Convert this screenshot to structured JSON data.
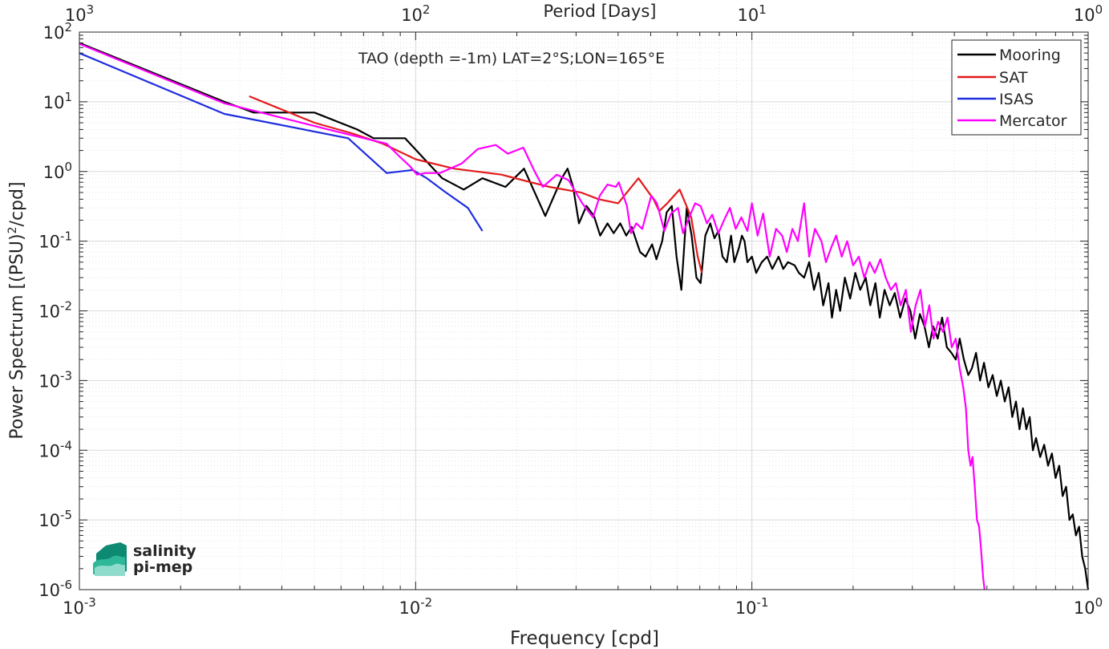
{
  "chart_data": {
    "type": "line",
    "title": "TAO (depth =-1m) LAT=2°S;LON=165°E",
    "xlabel": "Frequency [cpd]",
    "ylabel": "Power Spectrum [(PSU)²/cpd]",
    "ylabel_parts": {
      "main": "Power Spectrum [(PSU)",
      "sup": "2",
      "rest": "/cpd]"
    },
    "top_xlabel": "Period [Days]",
    "xscale": "log",
    "yscale": "log",
    "xlim": [
      0.001,
      1
    ],
    "ylim": [
      1e-06,
      100
    ],
    "x_ticks": [
      0.001,
      0.01,
      0.1,
      1
    ],
    "x_tick_labels": [
      {
        "base": "10",
        "exp": "-3"
      },
      {
        "base": "10",
        "exp": "-2"
      },
      {
        "base": "10",
        "exp": "-1"
      },
      {
        "base": "10",
        "exp": "0"
      }
    ],
    "y_ticks": [
      1e-06,
      1e-05,
      0.0001,
      0.001,
      0.01,
      0.1,
      1,
      10,
      100
    ],
    "y_tick_labels": [
      {
        "base": "10",
        "exp": "-6"
      },
      {
        "base": "10",
        "exp": "-5"
      },
      {
        "base": "10",
        "exp": "-4"
      },
      {
        "base": "10",
        "exp": "-3"
      },
      {
        "base": "10",
        "exp": "-2"
      },
      {
        "base": "10",
        "exp": "-1"
      },
      {
        "base": "10",
        "exp": "0"
      },
      {
        "base": "10",
        "exp": "1"
      },
      {
        "base": "10",
        "exp": "2"
      }
    ],
    "top_x_tick_labels": [
      {
        "base": "10",
        "exp": "3"
      },
      {
        "base": "10",
        "exp": "2"
      },
      {
        "base": "10",
        "exp": "1"
      },
      {
        "base": "10",
        "exp": "0"
      }
    ],
    "grid": true,
    "minor_grid": true,
    "legend_position": "top-right",
    "series": [
      {
        "name": "Mooring",
        "color": "#000000",
        "points": [
          [
            0.001,
            70
          ],
          [
            0.0027,
            10
          ],
          [
            0.0033,
            7
          ],
          [
            0.005,
            7
          ],
          [
            0.0067,
            4
          ],
          [
            0.0075,
            3
          ],
          [
            0.0093,
            3
          ],
          [
            0.012,
            0.8
          ],
          [
            0.0139,
            0.55
          ],
          [
            0.0158,
            0.8
          ],
          [
            0.0185,
            0.6
          ],
          [
            0.021,
            1.1
          ],
          [
            0.0243,
            0.23
          ],
          [
            0.0272,
            0.8
          ],
          [
            0.0283,
            1.1
          ],
          [
            0.0294,
            0.6
          ],
          [
            0.0306,
            0.18
          ],
          [
            0.0322,
            0.32
          ],
          [
            0.0339,
            0.23
          ],
          [
            0.0354,
            0.12
          ],
          [
            0.0372,
            0.18
          ],
          [
            0.0388,
            0.13
          ],
          [
            0.0406,
            0.18
          ],
          [
            0.0423,
            0.12
          ],
          [
            0.0439,
            0.16
          ],
          [
            0.0465,
            0.07
          ],
          [
            0.0483,
            0.06
          ],
          [
            0.0505,
            0.09
          ],
          [
            0.052,
            0.055
          ],
          [
            0.0541,
            0.1
          ],
          [
            0.0558,
            0.26
          ],
          [
            0.0578,
            0.32
          ],
          [
            0.0597,
            0.06
          ],
          [
            0.0617,
            0.02
          ],
          [
            0.064,
            0.3
          ],
          [
            0.0662,
            0.12
          ],
          [
            0.0684,
            0.03
          ],
          [
            0.0704,
            0.025
          ],
          [
            0.0727,
            0.12
          ],
          [
            0.0752,
            0.18
          ],
          [
            0.0774,
            0.11
          ],
          [
            0.0795,
            0.14
          ],
          [
            0.0818,
            0.06
          ],
          [
            0.0842,
            0.05
          ],
          [
            0.0867,
            0.12
          ],
          [
            0.0887,
            0.05
          ],
          [
            0.0915,
            0.08
          ],
          [
            0.0934,
            0.12
          ],
          [
            0.0951,
            0.1
          ],
          [
            0.097,
            0.05
          ],
          [
            0.1,
            0.06
          ],
          [
            0.103,
            0.035
          ],
          [
            0.107,
            0.05
          ],
          [
            0.111,
            0.06
          ],
          [
            0.115,
            0.04
          ],
          [
            0.12,
            0.06
          ],
          [
            0.124,
            0.04
          ],
          [
            0.128,
            0.05
          ],
          [
            0.134,
            0.045
          ],
          [
            0.138,
            0.035
          ],
          [
            0.143,
            0.03
          ],
          [
            0.148,
            0.05
          ],
          [
            0.153,
            0.02
          ],
          [
            0.158,
            0.035
          ],
          [
            0.163,
            0.012
          ],
          [
            0.169,
            0.025
          ],
          [
            0.173,
            0.008
          ],
          [
            0.178,
            0.02
          ],
          [
            0.183,
            0.01
          ],
          [
            0.189,
            0.03
          ],
          [
            0.196,
            0.015
          ],
          [
            0.203,
            0.035
          ],
          [
            0.21,
            0.02
          ],
          [
            0.218,
            0.03
          ],
          [
            0.225,
            0.012
          ],
          [
            0.233,
            0.025
          ],
          [
            0.24,
            0.008
          ],
          [
            0.248,
            0.02
          ],
          [
            0.257,
            0.012
          ],
          [
            0.266,
            0.018
          ],
          [
            0.276,
            0.008
          ],
          [
            0.286,
            0.015
          ],
          [
            0.296,
            0.01
          ],
          [
            0.306,
            0.004
          ],
          [
            0.316,
            0.009
          ],
          [
            0.326,
            0.006
          ],
          [
            0.336,
            0.003
          ],
          [
            0.346,
            0.006
          ],
          [
            0.357,
            0.004
          ],
          [
            0.368,
            0.008
          ],
          [
            0.38,
            0.003
          ],
          [
            0.392,
            0.0025
          ],
          [
            0.404,
            0.002
          ],
          [
            0.415,
            0.004
          ],
          [
            0.427,
            0.002
          ],
          [
            0.44,
            0.0012
          ],
          [
            0.451,
            0.0015
          ],
          [
            0.464,
            0.0025
          ],
          [
            0.477,
            0.001
          ],
          [
            0.49,
            0.0018
          ],
          [
            0.505,
            0.0008
          ],
          [
            0.52,
            0.0012
          ],
          [
            0.535,
            0.0006
          ],
          [
            0.55,
            0.001
          ],
          [
            0.565,
            0.0005
          ],
          [
            0.58,
            0.0008
          ],
          [
            0.595,
            0.0003
          ],
          [
            0.61,
            0.0005
          ],
          [
            0.625,
            0.0002
          ],
          [
            0.64,
            0.0004
          ],
          [
            0.655,
            0.0002
          ],
          [
            0.67,
            0.0003
          ],
          [
            0.685,
            0.0001
          ],
          [
            0.7,
            0.00015
          ],
          [
            0.72,
            8e-05
          ],
          [
            0.74,
            0.00012
          ],
          [
            0.76,
            6e-05
          ],
          [
            0.78,
            9e-05
          ],
          [
            0.8,
            4e-05
          ],
          [
            0.82,
            6e-05
          ],
          [
            0.84,
            2.2e-05
          ],
          [
            0.86,
            3e-05
          ],
          [
            0.88,
            1e-05
          ],
          [
            0.9,
            1.2e-05
          ],
          [
            0.92,
            6e-06
          ],
          [
            0.94,
            8e-06
          ],
          [
            0.96,
            3e-06
          ],
          [
            0.98,
            2e-06
          ],
          [
            1.0,
            1e-06
          ]
        ]
      },
      {
        "name": "SAT",
        "color": "#e31a1c",
        "points": [
          [
            0.0032,
            12
          ],
          [
            0.005,
            5
          ],
          [
            0.0065,
            3.5
          ],
          [
            0.008,
            2.5
          ],
          [
            0.01,
            1.5
          ],
          [
            0.013,
            1.1
          ],
          [
            0.018,
            0.9
          ],
          [
            0.022,
            0.7
          ],
          [
            0.025,
            0.6
          ],
          [
            0.031,
            0.5
          ],
          [
            0.035,
            0.4
          ],
          [
            0.04,
            0.35
          ],
          [
            0.046,
            0.8
          ],
          [
            0.051,
            0.4
          ],
          [
            0.053,
            0.27
          ],
          [
            0.056,
            0.35
          ],
          [
            0.061,
            0.55
          ],
          [
            0.066,
            0.22
          ],
          [
            0.069,
            0.06
          ],
          [
            0.071,
            0.035
          ]
        ]
      },
      {
        "name": "ISAS",
        "color": "#1f2de0",
        "points": [
          [
            0.001,
            50
          ],
          [
            0.0027,
            6.7
          ],
          [
            0.0063,
            3
          ],
          [
            0.0082,
            0.95
          ],
          [
            0.0098,
            1.05
          ],
          [
            0.0108,
            0.8
          ],
          [
            0.0123,
            0.5
          ],
          [
            0.0143,
            0.3
          ],
          [
            0.0158,
            0.14
          ]
        ]
      },
      {
        "name": "Mercator",
        "color": "#ff00ff",
        "points": [
          [
            0.001,
            68
          ],
          [
            0.0027,
            9.5
          ],
          [
            0.0055,
            4
          ],
          [
            0.0082,
            2.5
          ],
          [
            0.009,
            1.6
          ],
          [
            0.0096,
            1.2
          ],
          [
            0.0101,
            0.9
          ],
          [
            0.0107,
            0.95
          ],
          [
            0.0118,
            0.95
          ],
          [
            0.0137,
            1.3
          ],
          [
            0.0153,
            2.1
          ],
          [
            0.0173,
            2.4
          ],
          [
            0.0188,
            1.8
          ],
          [
            0.0209,
            2.2
          ],
          [
            0.0226,
            1.0
          ],
          [
            0.0239,
            0.6
          ],
          [
            0.0263,
            0.9
          ],
          [
            0.0285,
            0.75
          ],
          [
            0.0313,
            0.35
          ],
          [
            0.0337,
            0.22
          ],
          [
            0.0353,
            0.45
          ],
          [
            0.0372,
            0.65
          ],
          [
            0.0394,
            0.6
          ],
          [
            0.0402,
            0.7
          ],
          [
            0.0425,
            0.32
          ],
          [
            0.0437,
            0.13
          ],
          [
            0.0453,
            0.18
          ],
          [
            0.0472,
            0.15
          ],
          [
            0.0502,
            0.45
          ],
          [
            0.0522,
            0.35
          ],
          [
            0.0549,
            0.14
          ],
          [
            0.0575,
            0.25
          ],
          [
            0.0603,
            0.3
          ],
          [
            0.0624,
            0.13
          ],
          [
            0.0651,
            0.22
          ],
          [
            0.0678,
            0.35
          ],
          [
            0.0704,
            0.32
          ],
          [
            0.0735,
            0.18
          ],
          [
            0.0762,
            0.24
          ],
          [
            0.0795,
            0.13
          ],
          [
            0.0826,
            0.2
          ],
          [
            0.086,
            0.3
          ],
          [
            0.0895,
            0.15
          ],
          [
            0.093,
            0.22
          ],
          [
            0.097,
            0.14
          ],
          [
            0.1,
            0.35
          ],
          [
            0.104,
            0.12
          ],
          [
            0.108,
            0.25
          ],
          [
            0.113,
            0.06
          ],
          [
            0.118,
            0.15
          ],
          [
            0.123,
            0.12
          ],
          [
            0.127,
            0.07
          ],
          [
            0.132,
            0.15
          ],
          [
            0.137,
            0.1
          ],
          [
            0.143,
            0.35
          ],
          [
            0.148,
            0.06
          ],
          [
            0.154,
            0.15
          ],
          [
            0.161,
            0.1
          ],
          [
            0.166,
            0.05
          ],
          [
            0.172,
            0.08
          ],
          [
            0.178,
            0.12
          ],
          [
            0.185,
            0.06
          ],
          [
            0.192,
            0.1
          ],
          [
            0.2,
            0.045
          ],
          [
            0.208,
            0.06
          ],
          [
            0.216,
            0.03
          ],
          [
            0.224,
            0.05
          ],
          [
            0.232,
            0.035
          ],
          [
            0.241,
            0.055
          ],
          [
            0.25,
            0.03
          ],
          [
            0.259,
            0.02
          ],
          [
            0.268,
            0.025
          ],
          [
            0.277,
            0.012
          ],
          [
            0.287,
            0.02
          ],
          [
            0.297,
            0.005
          ],
          [
            0.307,
            0.012
          ],
          [
            0.317,
            0.02
          ],
          [
            0.327,
            0.006
          ],
          [
            0.337,
            0.012
          ],
          [
            0.347,
            0.004
          ],
          [
            0.358,
            0.007
          ],
          [
            0.37,
            0.005
          ],
          [
            0.382,
            0.008
          ],
          [
            0.393,
            0.003
          ],
          [
            0.404,
            0.004
          ],
          [
            0.415,
            0.0015
          ],
          [
            0.425,
            0.0008
          ],
          [
            0.433,
            0.0004
          ],
          [
            0.44,
            0.0001
          ],
          [
            0.447,
            6e-05
          ],
          [
            0.453,
            8e-05
          ],
          [
            0.46,
            3e-05
          ],
          [
            0.467,
            1e-05
          ],
          [
            0.474,
            8e-06
          ],
          [
            0.48,
            4e-06
          ],
          [
            0.487,
            1.5e-06
          ],
          [
            0.492,
            1e-06
          ]
        ]
      }
    ]
  },
  "logo": {
    "line1": "salinity",
    "line2": "pi-mep",
    "color": "#1aa38d"
  }
}
